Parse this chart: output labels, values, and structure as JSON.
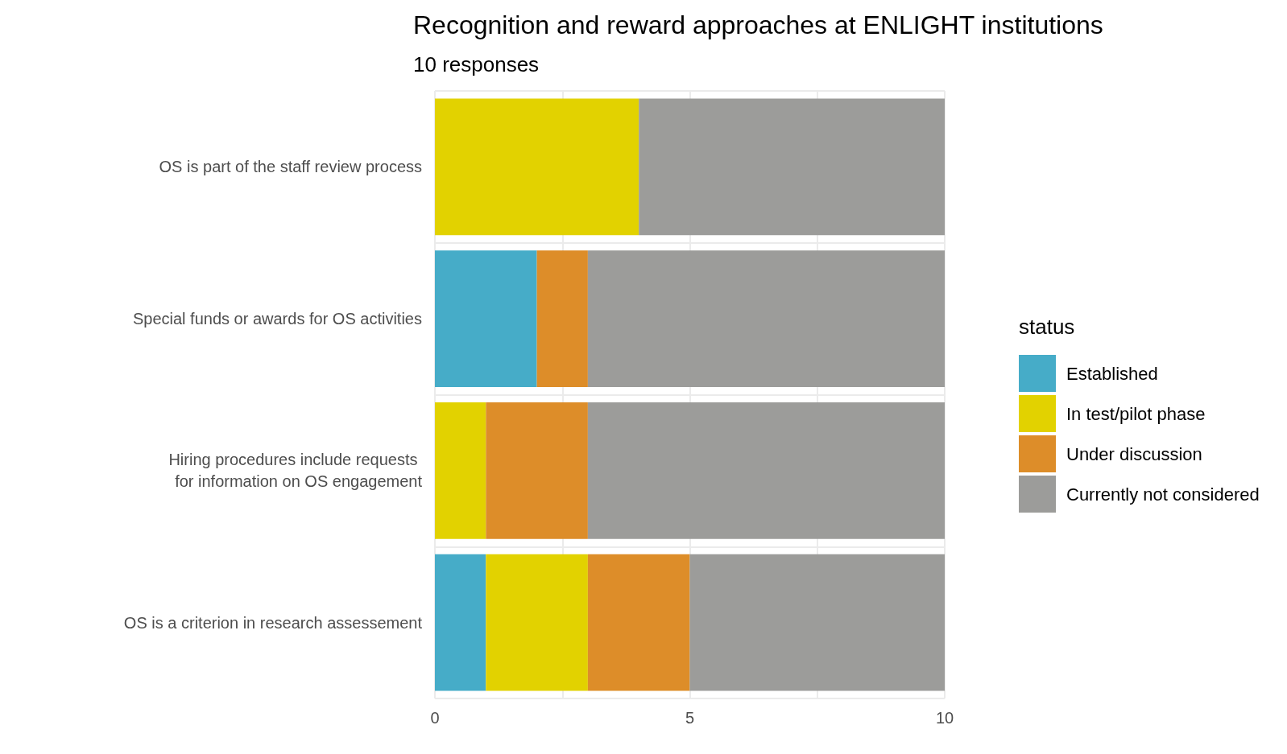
{
  "chart_data": {
    "type": "bar",
    "orientation": "horizontal",
    "stacked": true,
    "title": "Recognition and reward approaches at ENLIGHT institutions",
    "subtitle": "10 responses",
    "legend_title": "status",
    "legend": "right",
    "grid": true,
    "categories": [
      "OS is part of the staff review process",
      "Special funds or awards for OS activities",
      "Hiring procedures include requests \nfor information on OS engagement",
      "OS is a criterion in research assessement"
    ],
    "series": [
      {
        "name": "Established",
        "color": "#46acc8",
        "values": [
          0,
          2,
          0,
          1
        ]
      },
      {
        "name": "In test/pilot phase",
        "color": "#e2d200",
        "values": [
          4,
          0,
          1,
          2
        ]
      },
      {
        "name": "Under discussion",
        "color": "#dd8d29",
        "values": [
          0,
          1,
          2,
          2
        ]
      },
      {
        "name": "Currently not considered",
        "color": "#9c9c9a",
        "values": [
          6,
          7,
          7,
          5
        ]
      }
    ],
    "xlim": [
      0,
      10
    ],
    "xticks": [
      0,
      {
        "value": 2.5,
        "label": null
      },
      5,
      {
        "value": 7.5,
        "label": null
      },
      10
    ]
  }
}
